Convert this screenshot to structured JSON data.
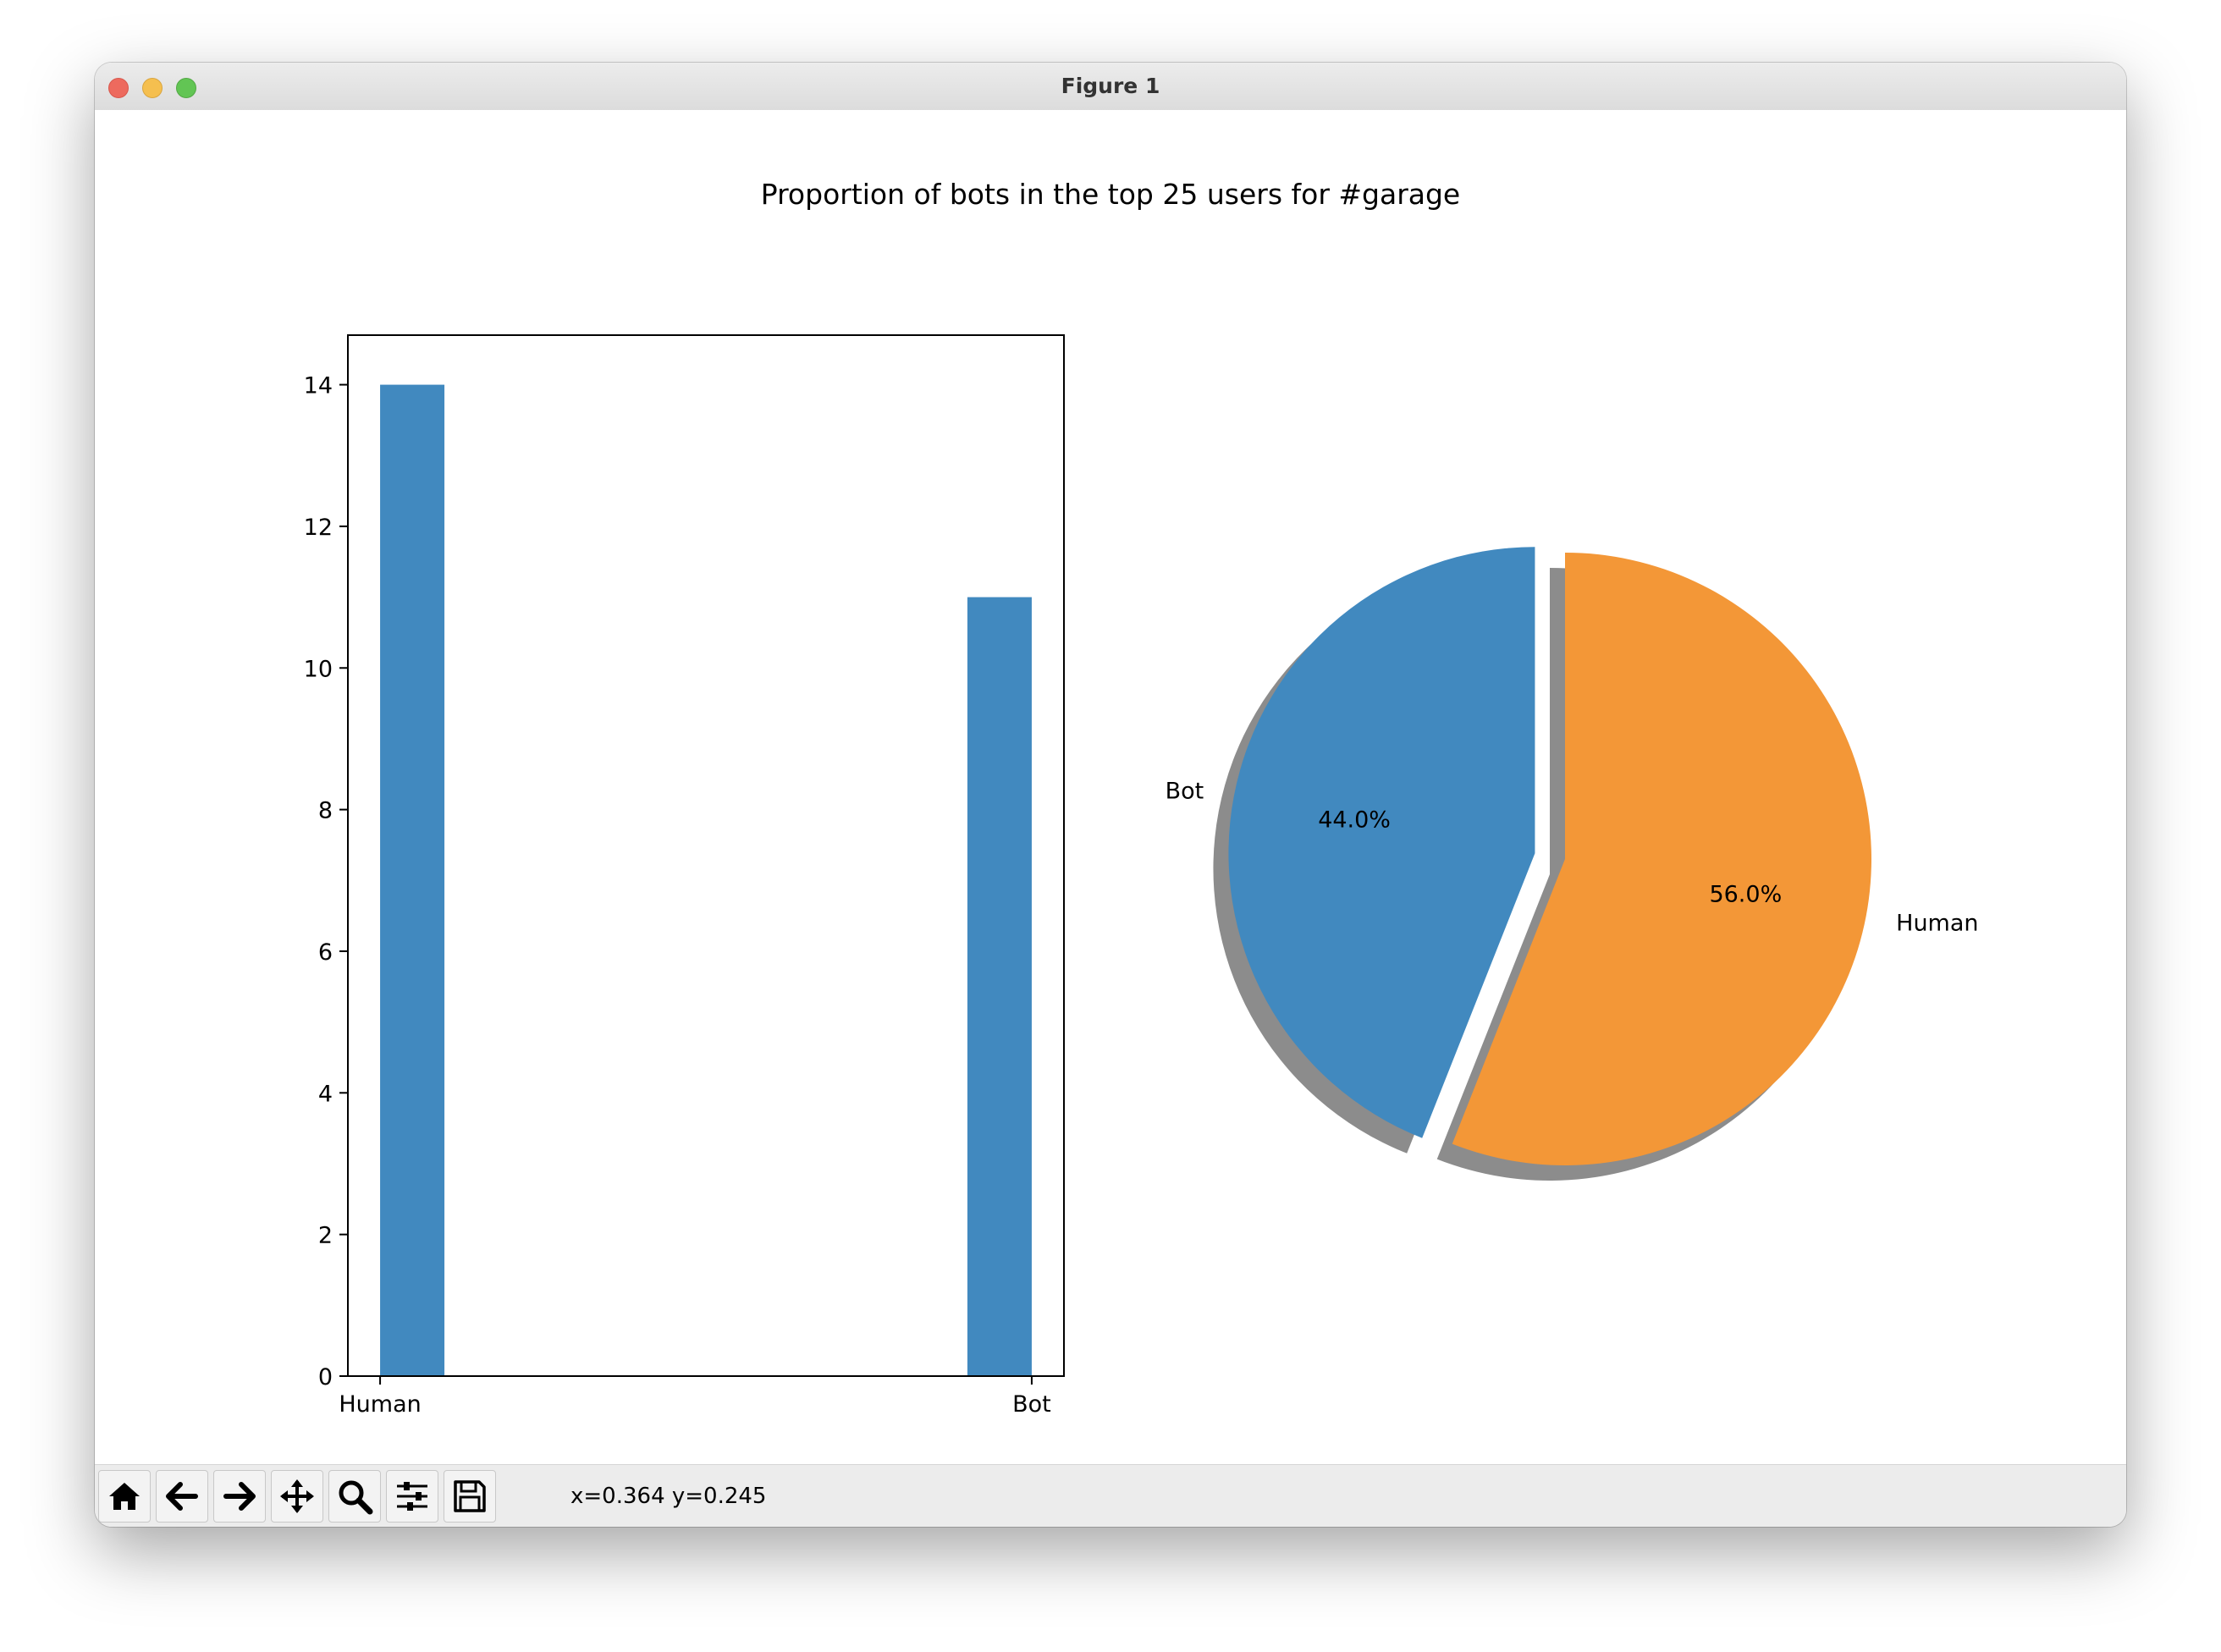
{
  "window": {
    "title": "Figure 1"
  },
  "toolbar": {
    "coords": "x=0.364 y=0.245",
    "tools": [
      "home-icon",
      "back-arrow-icon",
      "forward-arrow-icon",
      "pan-icon",
      "zoom-icon",
      "subplots-config-icon",
      "save-icon"
    ]
  },
  "colors": {
    "bar": "#4189bf",
    "bot": "#4189bf",
    "human": "#f39737",
    "shadow": "#000000"
  },
  "chart_data": [
    {
      "type": "bar",
      "title": "Proportion of bots in the top 25 users for #garage",
      "categories": [
        "Human",
        "Bot"
      ],
      "values": [
        14,
        11
      ],
      "ylim": [
        0,
        14.7
      ],
      "yticks": [
        "0",
        "2",
        "4",
        "6",
        "8",
        "10",
        "12",
        "14"
      ],
      "xlabel": "",
      "ylabel": "",
      "grid": false
    },
    {
      "type": "pie",
      "labels": [
        "Bot",
        "Human"
      ],
      "values": [
        44.0,
        56.0
      ],
      "autopct": [
        "44.0%",
        "56.0%"
      ],
      "explode": [
        0.1,
        0
      ],
      "shadow": true,
      "start_angle_deg": 90
    }
  ]
}
